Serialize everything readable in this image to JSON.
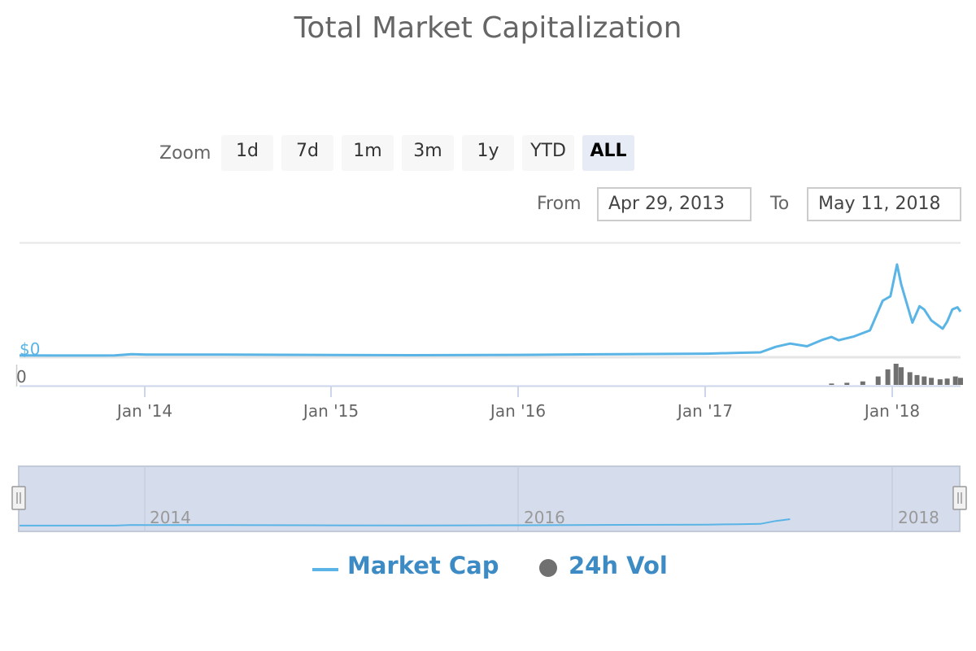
{
  "title": "Total Market Capitalization",
  "rangeSelector": {
    "zoom_label": "Zoom",
    "buttons": [
      "1d",
      "7d",
      "1m",
      "3m",
      "1y",
      "YTD",
      "ALL"
    ],
    "active": "ALL",
    "from_label": "From",
    "from_value": "Apr 29, 2013",
    "to_label": "To",
    "to_value": "May 11, 2018"
  },
  "axis": {
    "y_main_label": "$0",
    "y_volume_label": "0",
    "x_ticks": [
      "Jan '14",
      "Jan '15",
      "Jan '16",
      "Jan '17",
      "Jan '18"
    ],
    "navigator_ticks": [
      "2014",
      "2016",
      "2018"
    ]
  },
  "legend": [
    "Market Cap",
    "24h Vol"
  ],
  "colors": {
    "market_cap": "#5ab4e5",
    "volume": "#707070",
    "navigator_fill": "#d5dcec"
  },
  "chart_data": {
    "type": "line",
    "title": "Total Market Capitalization",
    "x_range": [
      "2013-04-29",
      "2018-05-11"
    ],
    "series": [
      {
        "name": "Market Cap",
        "x": [
          "2013-04-29",
          "2013-07-01",
          "2013-11-01",
          "2013-12-04",
          "2014-01-01",
          "2014-06-01",
          "2015-01-01",
          "2015-06-01",
          "2016-01-01",
          "2016-06-01",
          "2017-01-01",
          "2017-03-01",
          "2017-04-15",
          "2017-05-15",
          "2017-06-12",
          "2017-07-15",
          "2017-08-15",
          "2017-09-01",
          "2017-09-15",
          "2017-10-15",
          "2017-11-15",
          "2017-12-10",
          "2017-12-25",
          "2018-01-07",
          "2018-01-15",
          "2018-02-06",
          "2018-02-20",
          "2018-03-01",
          "2018-03-15",
          "2018-04-06",
          "2018-04-15",
          "2018-04-25",
          "2018-05-05",
          "2018-05-11"
        ],
        "values": [
          1.6,
          1.0,
          1.6,
          13,
          10,
          9,
          6,
          4,
          7,
          12,
          18,
          25,
          30,
          80,
          110,
          85,
          145,
          170,
          140,
          175,
          230,
          500,
          540,
          830,
          650,
          300,
          450,
          420,
          320,
          245,
          310,
          420,
          440,
          400
        ]
      },
      {
        "name": "24h Vol",
        "x": [
          "2017-09-01",
          "2017-10-01",
          "2017-11-01",
          "2017-12-01",
          "2017-12-20",
          "2018-01-05",
          "2018-01-15",
          "2018-02-01",
          "2018-02-15",
          "2018-03-01",
          "2018-03-15",
          "2018-04-01",
          "2018-04-15",
          "2018-05-01",
          "2018-05-11"
        ],
        "values": [
          2,
          3,
          5,
          12,
          22,
          30,
          25,
          18,
          14,
          12,
          10,
          8,
          9,
          12,
          10
        ]
      }
    ]
  }
}
